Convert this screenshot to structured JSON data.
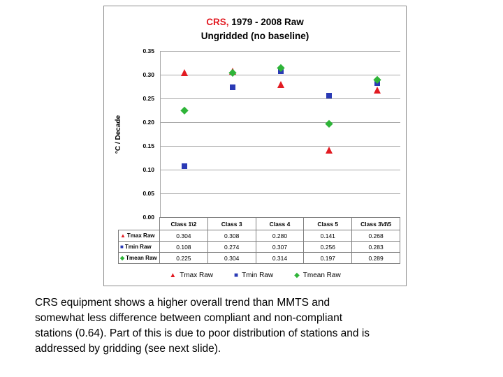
{
  "chart": {
    "title_accent": "CRS,",
    "title_rest": " 1979 - 2008 Raw",
    "subtitle": "Ungridded (no baseline)",
    "ylabel": "°C / Decade",
    "title_accent_color": "#e21b22"
  },
  "chart_data": {
    "type": "scatter",
    "categories": [
      "Class 1\\2",
      "Class 3",
      "Class 4",
      "Class 5",
      "Class 3\\4\\5"
    ],
    "series": [
      {
        "name": "Tmax Raw",
        "marker": "triangle",
        "color": "#e21b22",
        "values": [
          0.304,
          0.308,
          0.28,
          0.141,
          0.268
        ]
      },
      {
        "name": "Tmin Raw",
        "marker": "square",
        "color": "#2a3ab5",
        "values": [
          0.108,
          0.274,
          0.307,
          0.256,
          0.283
        ]
      },
      {
        "name": "Tmean Raw",
        "marker": "diamond",
        "color": "#2eb438",
        "values": [
          0.225,
          0.304,
          0.314,
          0.197,
          0.289
        ]
      }
    ],
    "ylim": [
      0,
      0.35
    ],
    "ytick_step": 0.05,
    "ytick_decimals": 2,
    "value_decimals": 3,
    "grid": true,
    "legend_position": "bottom"
  },
  "caption": "CRS equipment shows a higher overall trend than MMTS and\nsomewhat less difference between compliant and non-compliant\nstations (0.64). Part of this is due to poor distribution of stations and is\naddressed by gridding (see next slide)."
}
